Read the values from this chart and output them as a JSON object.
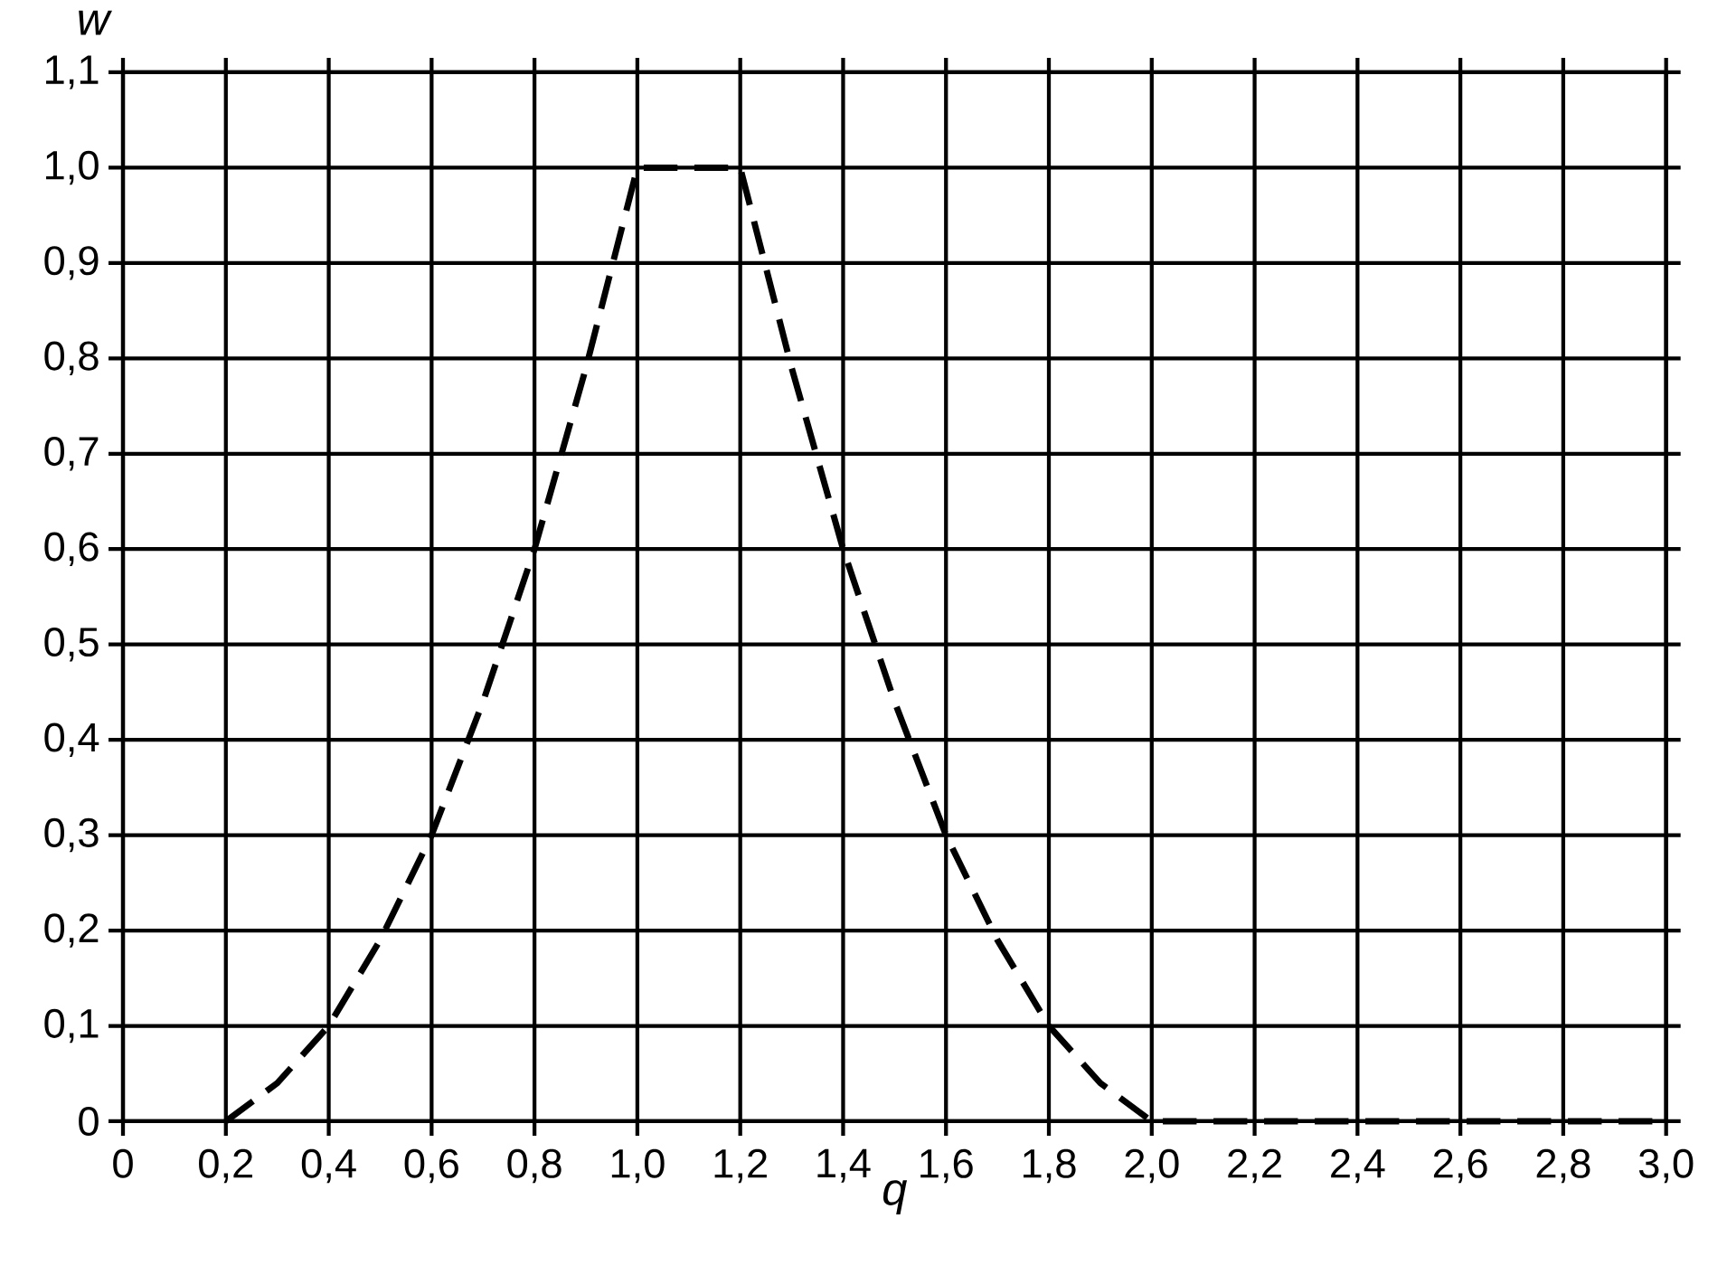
{
  "chart_data": {
    "type": "line",
    "xlabel": "q",
    "ylabel": "w",
    "x": [
      0.2,
      0.3,
      0.4,
      0.5,
      0.6,
      0.7,
      0.8,
      0.9,
      1.0,
      1.2,
      1.3,
      1.4,
      1.5,
      1.6,
      1.7,
      1.8,
      1.9,
      2.0,
      3.0
    ],
    "series": [
      {
        "color": "#000000",
        "values": [
          0,
          0.04,
          0.1,
          0.19,
          0.3,
          0.44,
          0.6,
          0.79,
          1.0,
          1.0,
          0.79,
          0.6,
          0.44,
          0.3,
          0.19,
          0.1,
          0.04,
          0,
          0
        ]
      }
    ],
    "line_style": "dashed",
    "grid": true,
    "xlim": [
      0,
      3.0
    ],
    "ylim": [
      0,
      1.1
    ],
    "xticks": [
      0,
      {
        "value": 0.2,
        "label": "0,2"
      },
      {
        "value": 0.4,
        "label": "0,4"
      },
      {
        "value": 0.6,
        "label": "0,6"
      },
      {
        "value": 0.8,
        "label": "0,8"
      },
      {
        "value": 1.0,
        "label": "1,0"
      },
      {
        "value": 1.2,
        "label": "1,2"
      },
      {
        "value": 1.4,
        "label": "1,4"
      },
      {
        "value": 1.6,
        "label": "1,6"
      },
      {
        "value": 1.8,
        "label": "1,8"
      },
      {
        "value": 2.0,
        "label": "2,0"
      },
      {
        "value": 2.2,
        "label": "2,2"
      },
      {
        "value": 2.4,
        "label": "2,4"
      },
      {
        "value": 2.6,
        "label": "2,6"
      },
      {
        "value": 2.8,
        "label": "2,8"
      },
      {
        "value": 3.0,
        "label": "3,0"
      }
    ],
    "yticks": [
      0,
      {
        "value": 0.1,
        "label": "0,1"
      },
      {
        "value": 0.2,
        "label": "0,2"
      },
      {
        "value": 0.3,
        "label": "0,3"
      },
      {
        "value": 0.4,
        "label": "0,4"
      },
      {
        "value": 0.5,
        "label": "0,5"
      },
      {
        "value": 0.6,
        "label": "0,6"
      },
      {
        "value": 0.7,
        "label": "0,7"
      },
      {
        "value": 0.8,
        "label": "0,8"
      },
      {
        "value": 0.9,
        "label": "0,9"
      },
      {
        "value": 1.0,
        "label": "1,0"
      },
      {
        "value": 1.1,
        "label": "1,1"
      }
    ]
  }
}
